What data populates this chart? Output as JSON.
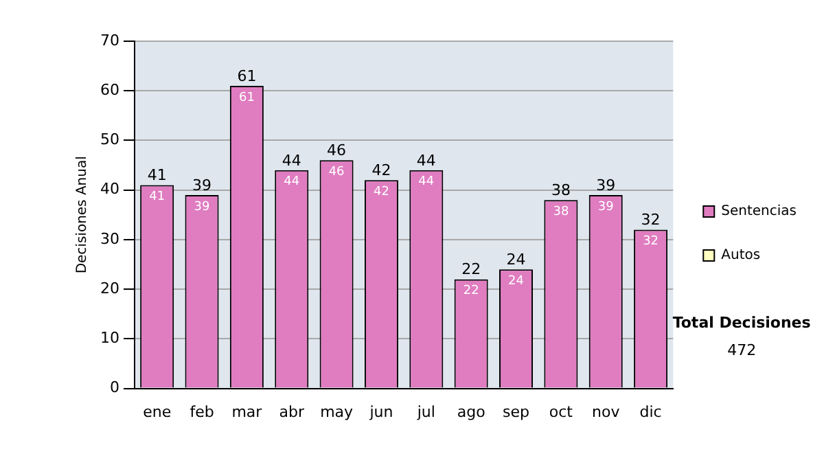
{
  "chart_data": {
    "type": "bar",
    "ylabel": "Decisiones Anual",
    "categories": [
      "ene",
      "feb",
      "mar",
      "abr",
      "may",
      "jun",
      "jul",
      "ago",
      "sep",
      "oct",
      "nov",
      "dic"
    ],
    "series": [
      {
        "name": "Sentencias",
        "color": "#e07cc0",
        "values": [
          41,
          39,
          61,
          44,
          46,
          42,
          44,
          22,
          24,
          38,
          39,
          32
        ],
        "value_labels": [
          "41",
          "39",
          "61",
          "44",
          "46",
          "42",
          "44",
          "22",
          "24",
          "38",
          "39",
          "32"
        ]
      },
      {
        "name": "Autos",
        "color": "#ffffc0",
        "values": [
          0,
          0,
          0,
          0,
          0,
          0,
          0,
          0,
          0,
          0,
          0,
          0
        ]
      }
    ],
    "stacked": true,
    "totals": [
      "41",
      "39",
      "61",
      "44",
      "46",
      "42",
      "44",
      "22",
      "24",
      "38",
      "39",
      "32"
    ],
    "ylim": [
      0,
      70
    ],
    "yticks": [
      0,
      10,
      20,
      30,
      40,
      50,
      60,
      70
    ],
    "grid": "y",
    "legend": "right",
    "annotations": [
      "Total Decisiones",
      "472"
    ]
  }
}
